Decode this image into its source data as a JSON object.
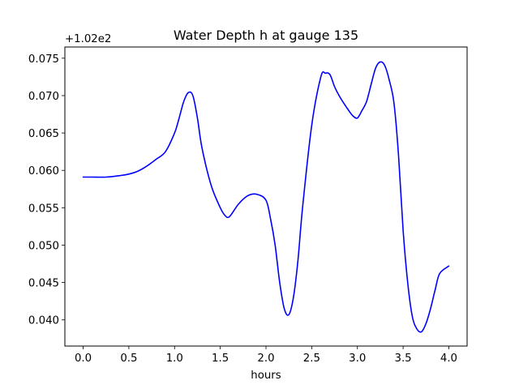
{
  "chart_data": {
    "type": "line",
    "title": "Water Depth h at gauge 135",
    "xlabel": "hours",
    "ylabel": "",
    "y_offset_label": "+1.02e2",
    "xlim": [
      -0.2,
      4.2
    ],
    "ylim": [
      0.0365,
      0.0765
    ],
    "x_ticks": [
      0.0,
      0.5,
      1.0,
      1.5,
      2.0,
      2.5,
      3.0,
      3.5,
      4.0
    ],
    "x_tick_labels": [
      "0.0",
      "0.5",
      "1.0",
      "1.5",
      "2.0",
      "2.5",
      "3.0",
      "3.5",
      "4.0"
    ],
    "y_ticks": [
      0.04,
      0.045,
      0.05,
      0.055,
      0.06,
      0.065,
      0.07,
      0.075
    ],
    "y_tick_labels": [
      "0.040",
      "0.045",
      "0.050",
      "0.055",
      "0.060",
      "0.065",
      "0.070",
      "0.075"
    ],
    "grid": false,
    "legend": "none",
    "series": [
      {
        "color": "#0000ff",
        "x": [
          0.0,
          0.1,
          0.25,
          0.4,
          0.5,
          0.6,
          0.7,
          0.8,
          0.9,
          1.0,
          1.05,
          1.1,
          1.15,
          1.2,
          1.25,
          1.3,
          1.4,
          1.5,
          1.55,
          1.6,
          1.7,
          1.8,
          1.9,
          2.0,
          2.05,
          2.1,
          2.15,
          2.2,
          2.25,
          2.3,
          2.35,
          2.4,
          2.5,
          2.6,
          2.65,
          2.7,
          2.75,
          2.8,
          2.85,
          2.9,
          2.95,
          3.0,
          3.05,
          3.1,
          3.15,
          3.2,
          3.25,
          3.3,
          3.35,
          3.4,
          3.45,
          3.5,
          3.55,
          3.6,
          3.65,
          3.7,
          3.75,
          3.8,
          3.85,
          3.9,
          4.0
        ],
        "y": [
          0.0591,
          0.0591,
          0.0591,
          0.0593,
          0.0595,
          0.0599,
          0.0606,
          0.0615,
          0.0625,
          0.065,
          0.067,
          0.0692,
          0.0704,
          0.07,
          0.067,
          0.063,
          0.058,
          0.055,
          0.054,
          0.0538,
          0.0555,
          0.0566,
          0.0568,
          0.056,
          0.0535,
          0.05,
          0.045,
          0.0415,
          0.0407,
          0.043,
          0.048,
          0.055,
          0.066,
          0.0725,
          0.073,
          0.0728,
          0.0712,
          0.07,
          0.069,
          0.0681,
          0.0673,
          0.067,
          0.068,
          0.0692,
          0.0715,
          0.0737,
          0.0745,
          0.074,
          0.072,
          0.069,
          0.062,
          0.052,
          0.045,
          0.0405,
          0.0388,
          0.0384,
          0.0395,
          0.0415,
          0.044,
          0.0462,
          0.0472
        ]
      }
    ]
  }
}
